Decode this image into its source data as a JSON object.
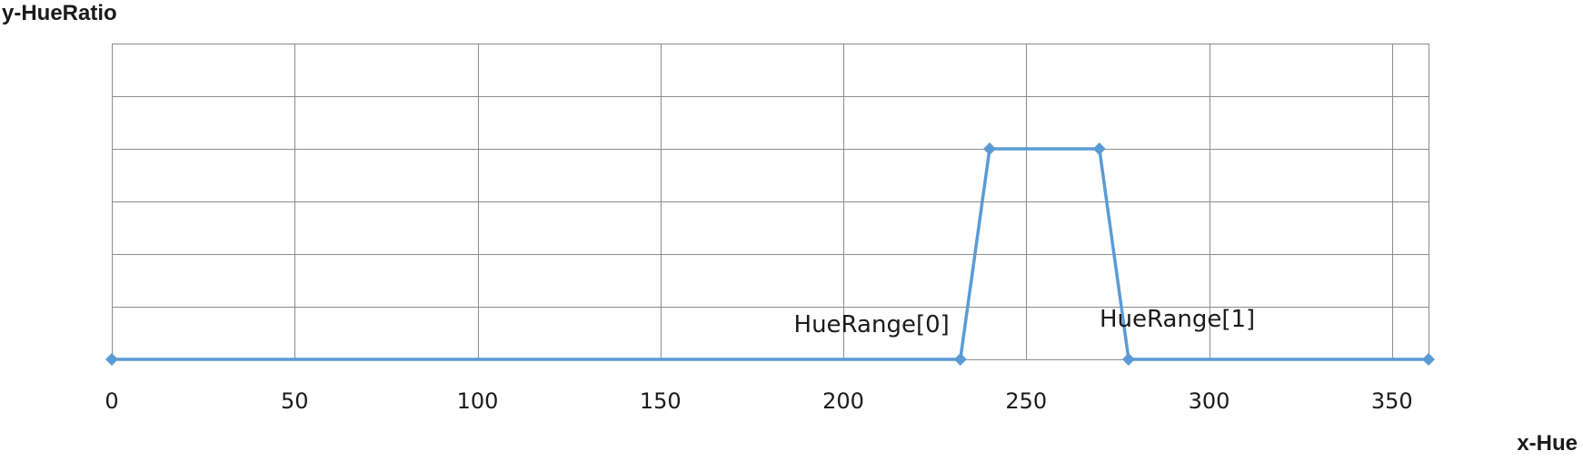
{
  "chart_data": {
    "type": "line",
    "title": "",
    "xlabel": "x-Hue",
    "ylabel": "y-HueRatio",
    "xlim": [
      0,
      360
    ],
    "ylim": [
      0,
      6
    ],
    "xticks": [
      0,
      50,
      100,
      150,
      200,
      250,
      300,
      350
    ],
    "yticks": [
      0,
      1,
      2,
      3,
      4,
      5,
      6
    ],
    "show_y_tick_labels": false,
    "grid": true,
    "legend": "none",
    "colors": {
      "series": "#5b9bd5",
      "grid": "#8c8c8c"
    },
    "series": [
      {
        "name": "",
        "marker": "diamond",
        "points": [
          {
            "x": 0,
            "y": 0
          },
          {
            "x": 232,
            "y": 0
          },
          {
            "x": 240,
            "y": 4
          },
          {
            "x": 270,
            "y": 4
          },
          {
            "x": 278,
            "y": 0
          },
          {
            "x": 360,
            "y": 0
          }
        ]
      }
    ],
    "annotations": [
      {
        "text": "HueRange[0]",
        "x": 232,
        "y": 0
      },
      {
        "text": "HueRange[1]",
        "x": 278,
        "y": 0
      }
    ]
  }
}
